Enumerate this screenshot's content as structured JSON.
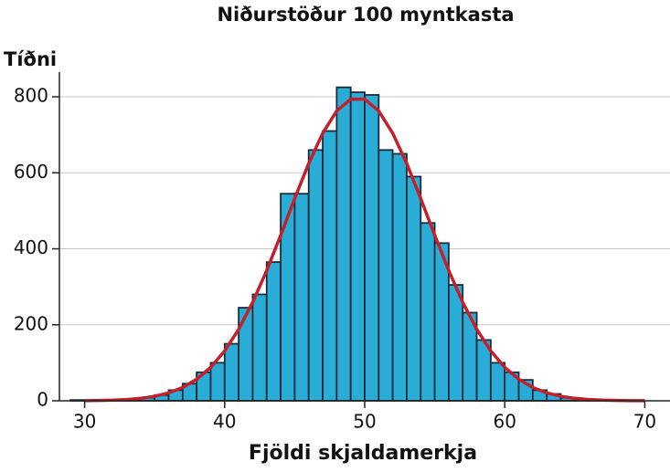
{
  "chart_data": {
    "type": "histogram",
    "title": "Niðurstöður 100 myntkasta",
    "y_label": "Tíðni",
    "x_label": "Fjöldi skjaldamerkja",
    "bins": [
      29,
      30,
      31,
      32,
      33,
      34,
      35,
      36,
      37,
      38,
      39,
      40,
      41,
      42,
      43,
      44,
      45,
      46,
      47,
      48,
      49,
      50,
      51,
      52,
      53,
      54,
      55,
      56,
      57,
      58,
      59,
      60,
      61,
      62,
      63,
      64,
      65,
      66,
      67,
      68,
      69
    ],
    "values": [
      2,
      1,
      1,
      2,
      4,
      8,
      15,
      28,
      45,
      75,
      100,
      150,
      245,
      280,
      365,
      545,
      545,
      660,
      710,
      825,
      812,
      805,
      660,
      650,
      590,
      468,
      415,
      305,
      232,
      160,
      100,
      75,
      55,
      28,
      18,
      8,
      5,
      2,
      1,
      1
    ],
    "color": "#29acd6",
    "edge_color": "#1b2b3b",
    "curve": {
      "color": "#c4202c",
      "x": [
        30,
        31,
        32,
        33,
        34,
        35,
        36,
        37,
        38,
        39,
        40,
        41,
        42,
        43,
        44,
        45,
        46,
        47,
        48,
        49,
        50,
        51,
        52,
        53,
        54,
        55,
        56,
        57,
        58,
        59,
        60,
        61,
        62,
        63,
        64,
        65,
        66,
        67,
        68,
        69,
        70
      ],
      "values": [
        0.4,
        0.85,
        1.7,
        3.4,
        6.5,
        11.9,
        20.8,
        35.1,
        56.7,
        88.0,
        131.3,
        188.1,
        259.1,
        342.8,
        435.7,
        532.2,
        624.5,
        704.2,
        762.8,
        793.9,
        793.9,
        762.8,
        704.2,
        624.5,
        532.2,
        435.7,
        342.8,
        259.1,
        188.1,
        131.3,
        88.0,
        56.7,
        35.1,
        20.8,
        11.9,
        6.5,
        3.4,
        1.7,
        0.85,
        0.4,
        0.2
      ]
    },
    "xlim": [
      28.2,
      71.8
    ],
    "ylim": [
      0,
      865
    ],
    "xticks": [
      30,
      40,
      50,
      60,
      70
    ],
    "yticks": [
      0,
      200,
      400,
      600,
      800
    ],
    "grid": true
  }
}
